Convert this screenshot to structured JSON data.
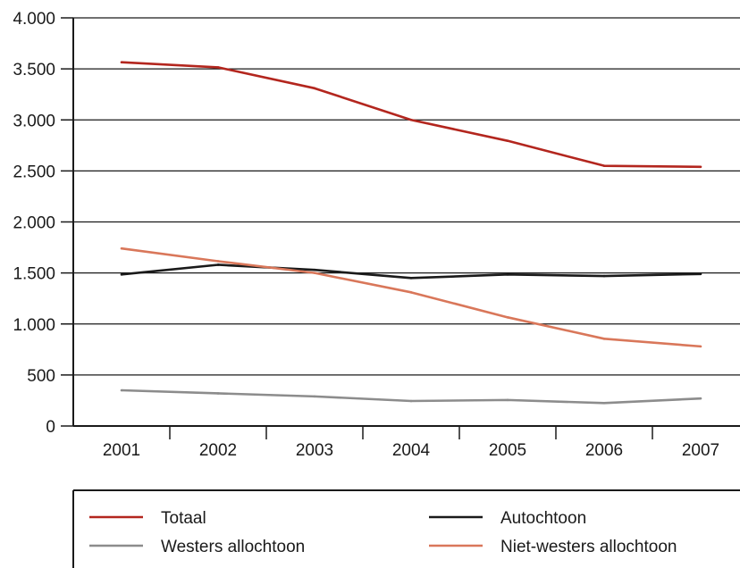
{
  "chart_data": {
    "type": "line",
    "categories": [
      "2001",
      "2002",
      "2003",
      "2004",
      "2005",
      "2006",
      "2007"
    ],
    "ylim": [
      0,
      4000
    ],
    "yticks": [
      0,
      500,
      1000,
      1500,
      2000,
      2500,
      3000,
      3500,
      4000
    ],
    "ytick_labels": [
      "0",
      "500",
      "1.000",
      "1.500",
      "2.000",
      "2.500",
      "3.000",
      "3.500",
      "4.000"
    ],
    "grid": true,
    "legend_position": "bottom",
    "series": [
      {
        "name": "Totaal",
        "color": "#b3261e",
        "values": [
          3565,
          3515,
          3310,
          3000,
          2795,
          2550,
          2540
        ]
      },
      {
        "name": "Autochtoon",
        "color": "#1a1a1a",
        "values": [
          1485,
          1580,
          1530,
          1450,
          1485,
          1470,
          1490
        ]
      },
      {
        "name": "Westers allochtoon",
        "color": "#8c8c8c",
        "values": [
          350,
          320,
          290,
          245,
          255,
          225,
          270
        ]
      },
      {
        "name": "Niet-westers allochtoon",
        "color": "#d9775a",
        "values": [
          1740,
          1615,
          1500,
          1310,
          1065,
          855,
          780
        ]
      }
    ]
  }
}
